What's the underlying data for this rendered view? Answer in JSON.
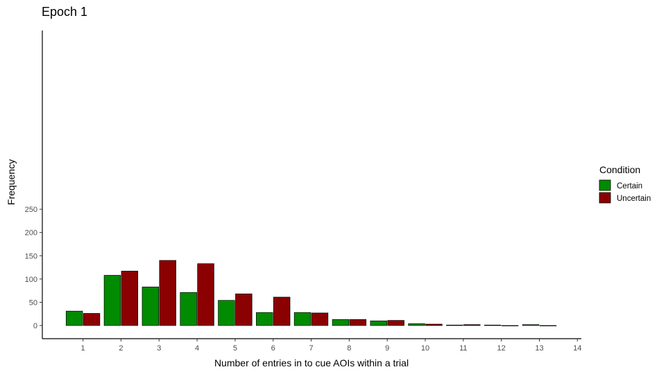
{
  "chart_data": {
    "type": "bar",
    "title": "Epoch 1",
    "xlabel": "Number of entries in to cue AOIs within a trial",
    "ylabel": "Frequency",
    "x_ticks": [
      1,
      2,
      3,
      4,
      5,
      6,
      7,
      8,
      9,
      10,
      11,
      12,
      13,
      14
    ],
    "y_ticks": [
      0,
      50,
      100,
      150,
      200,
      250
    ],
    "xlim": [
      0,
      14.1
    ],
    "ylim": [
      0,
      255
    ],
    "grid": false,
    "legend": {
      "title": "Condition",
      "position": "right"
    },
    "series": [
      {
        "name": "Certain",
        "color": "#008b00",
        "x": [
          1,
          2,
          3,
          4,
          5,
          6,
          7,
          8,
          9,
          10,
          11,
          12,
          13
        ],
        "values": [
          31,
          108,
          83,
          71,
          54,
          28,
          28,
          13,
          10,
          4,
          1,
          1,
          2
        ]
      },
      {
        "name": "Uncertain",
        "color": "#8b0000",
        "x": [
          1,
          2,
          3,
          4,
          5,
          6,
          7,
          8,
          9,
          10,
          11,
          12,
          13
        ],
        "values": [
          26,
          117,
          140,
          133,
          68,
          61,
          27,
          13,
          11,
          3,
          2,
          0,
          0
        ]
      }
    ]
  }
}
